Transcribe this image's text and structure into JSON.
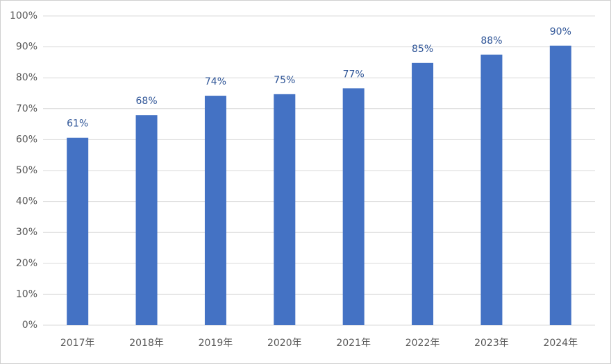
{
  "chart_data": {
    "type": "bar",
    "categories": [
      "2017年",
      "2018年",
      "2019年",
      "2020年",
      "2021年",
      "2022年",
      "2023年",
      "2024年"
    ],
    "values": [
      60.6,
      67.9,
      74.2,
      74.7,
      76.6,
      84.8,
      87.5,
      90.4
    ],
    "value_labels": [
      "61%",
      "68%",
      "74%",
      "75%",
      "77%",
      "85%",
      "88%",
      "90%"
    ],
    "color": "#4472c4",
    "ylim": [
      0,
      100
    ],
    "yticks": [
      {
        "value": 0,
        "label": "0%"
      },
      {
        "value": 10,
        "label": "10%"
      },
      {
        "value": 20,
        "label": "20%"
      },
      {
        "value": 30,
        "label": "30%"
      },
      {
        "value": 40,
        "label": "40%"
      },
      {
        "value": 50,
        "label": "50%"
      },
      {
        "value": 60,
        "label": "60%"
      },
      {
        "value": 70,
        "label": "70%"
      },
      {
        "value": 80,
        "label": "80%"
      },
      {
        "value": 90,
        "label": "90%"
      },
      {
        "value": 100,
        "label": "100%"
      }
    ],
    "grid": true
  }
}
